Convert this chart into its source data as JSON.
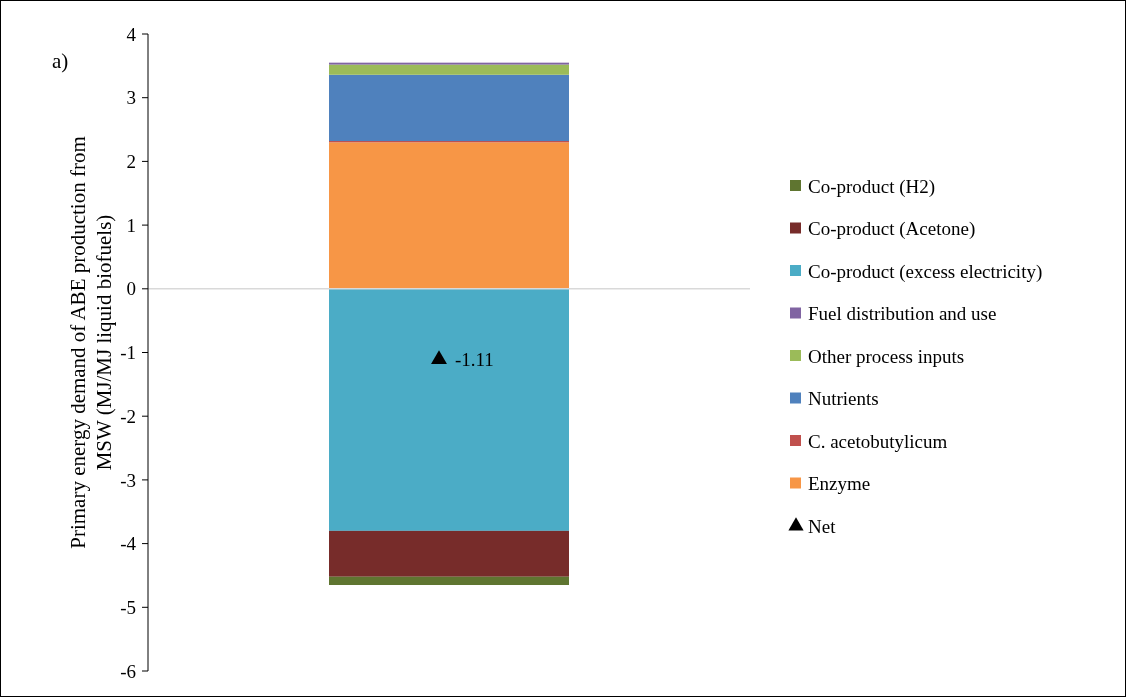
{
  "chart_data": {
    "type": "bar",
    "stacked": true,
    "ylabel": "Primary energy demand of ABE production from MSW (MJ/MJ liquid biofuels)",
    "annotations": [
      "a)"
    ],
    "categories": [
      null
    ],
    "ylim": [
      -6,
      4
    ],
    "yticks": [
      -6,
      -5,
      -4,
      -3,
      -2,
      -1,
      0,
      1,
      2,
      3,
      4
    ],
    "legend": "right",
    "series": [
      {
        "name": "Enzyme",
        "color": "#f79646",
        "values": [
          2.3
        ]
      },
      {
        "name": "C. acetobutylicum",
        "color": "#c0504d",
        "values": [
          0.02
        ]
      },
      {
        "name": "Nutrients",
        "color": "#4f81bd",
        "values": [
          1.04
        ]
      },
      {
        "name": "Other process inputs",
        "color": "#9bbb59",
        "values": [
          0.16
        ]
      },
      {
        "name": "Fuel distribution and use",
        "color": "#8064a2",
        "values": [
          0.03
        ]
      },
      {
        "name": "Co-product (excess electricity)",
        "color": "#4bacc6",
        "values": [
          -3.8
        ]
      },
      {
        "name": "Co-product (Acetone)",
        "color": "#772c2a",
        "values": [
          -0.72
        ]
      },
      {
        "name": "Co-product (H2)",
        "color": "#5f7530",
        "values": [
          -0.13
        ]
      },
      {
        "name": "Net",
        "type": "scatter",
        "marker": "triangle",
        "color": "#000000",
        "values": [
          -1.11
        ],
        "value_labels": [
          "-1.11"
        ]
      }
    ]
  }
}
